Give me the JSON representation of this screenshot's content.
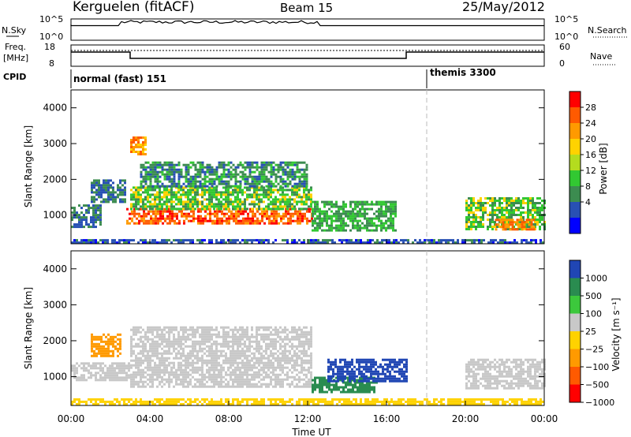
{
  "header": {
    "station": "Kerguelen (fitACF)",
    "beam": "Beam 15",
    "date": "25/May/2012"
  },
  "top_panels": {
    "nsky_label": "N.Sky",
    "nsearch_label": "N.Search",
    "freq_label_1": "Freq.",
    "freq_label_2": "[MHz]",
    "nave_label": "Nave",
    "cpid_label": "CPID",
    "nsky_ticks": [
      "10^5",
      "10^0"
    ],
    "nsearch_ticks": [
      "10^5",
      "10^0"
    ],
    "freq_ticks": [
      "18",
      "8"
    ],
    "nave_ticks": [
      "60",
      "0"
    ],
    "cpid_modes": [
      "normal (fast) 151",
      "themis 3300"
    ]
  },
  "power_colorbar": {
    "label": "Power [dB]",
    "ticks": [
      "28",
      "24",
      "20",
      "16",
      "12",
      "8",
      "4"
    ],
    "colors": [
      "#ff0000",
      "#ff5a00",
      "#ff9a00",
      "#ffd200",
      "#b4dc1e",
      "#32c832",
      "#3c8c50",
      "#2850b4",
      "#0000ff"
    ]
  },
  "velocity_colorbar": {
    "label": "Velocity [m s⁻¹]",
    "ticks": [
      "1000",
      "500",
      "100",
      "25",
      "−25",
      "−100",
      "−500",
      "−1000"
    ],
    "colors": [
      "#2046b4",
      "#2a8c50",
      "#3cc83c",
      "#c8c8c8",
      "#ffd200",
      "#ff9a00",
      "#ff5a00",
      "#ff0000"
    ]
  },
  "chart_data": [
    {
      "type": "heatmap",
      "title": "",
      "xlabel": "",
      "ylabel": "Slant Range [km]",
      "x_ticks": [
        "00:00",
        "04:00",
        "08:00",
        "12:00",
        "16:00",
        "20:00",
        "00:00"
      ],
      "y_ticks": [
        "1000",
        "2000",
        "3000",
        "4000"
      ],
      "xlim_hours": [
        0,
        24
      ],
      "ylim": [
        200,
        4500
      ],
      "quantity": "Power [dB]",
      "regions": [
        {
          "t0": 0.0,
          "t1": 24.0,
          "r0": 250,
          "r1": 330,
          "value": 6
        },
        {
          "t0": 0.0,
          "t1": 1.5,
          "r0": 700,
          "r1": 1300,
          "value": 8
        },
        {
          "t0": 1.0,
          "t1": 2.8,
          "r0": 1400,
          "r1": 2000,
          "value": 8
        },
        {
          "t0": 2.8,
          "t1": 12.2,
          "r0": 800,
          "r1": 1200,
          "value": 26
        },
        {
          "t0": 3.0,
          "t1": 12.2,
          "r0": 1200,
          "r1": 1800,
          "value": 14
        },
        {
          "t0": 3.5,
          "t1": 12.0,
          "r0": 1800,
          "r1": 2500,
          "value": 10
        },
        {
          "t0": 3.0,
          "t1": 3.8,
          "r0": 2700,
          "r1": 3200,
          "value": 22
        },
        {
          "t0": 12.2,
          "t1": 16.5,
          "r0": 600,
          "r1": 1400,
          "value": 12
        },
        {
          "t0": 20.0,
          "t1": 24.0,
          "r0": 600,
          "r1": 1500,
          "value": 14
        },
        {
          "t0": 21.5,
          "t1": 23.5,
          "r0": 600,
          "r1": 900,
          "value": 24
        }
      ]
    },
    {
      "type": "heatmap",
      "title": "",
      "xlabel": "Time UT",
      "ylabel": "Slant Range [km]",
      "x_ticks": [
        "00:00",
        "04:00",
        "08:00",
        "12:00",
        "16:00",
        "20:00",
        "00:00"
      ],
      "y_ticks": [
        "1000",
        "2000",
        "3000",
        "4000"
      ],
      "xlim_hours": [
        0,
        24
      ],
      "ylim": [
        200,
        4500
      ],
      "quantity": "Velocity [m s-1]",
      "regions": [
        {
          "t0": 0.0,
          "t1": 24.0,
          "r0": 250,
          "r1": 400,
          "value": -50
        },
        {
          "t0": 0.0,
          "t1": 3.0,
          "r0": 900,
          "r1": 1400,
          "value": 0
        },
        {
          "t0": 1.0,
          "t1": 2.5,
          "r0": 1600,
          "r1": 2200,
          "value": -300
        },
        {
          "t0": 3.0,
          "t1": 12.2,
          "r0": 700,
          "r1": 2400,
          "value": 0
        },
        {
          "t0": 12.2,
          "t1": 15.5,
          "r0": 600,
          "r1": 1000,
          "value": 200
        },
        {
          "t0": 13.0,
          "t1": 17.0,
          "r0": 900,
          "r1": 1500,
          "value": 600
        },
        {
          "t0": 20.0,
          "t1": 24.0,
          "r0": 700,
          "r1": 1500,
          "value": 0
        }
      ]
    }
  ]
}
